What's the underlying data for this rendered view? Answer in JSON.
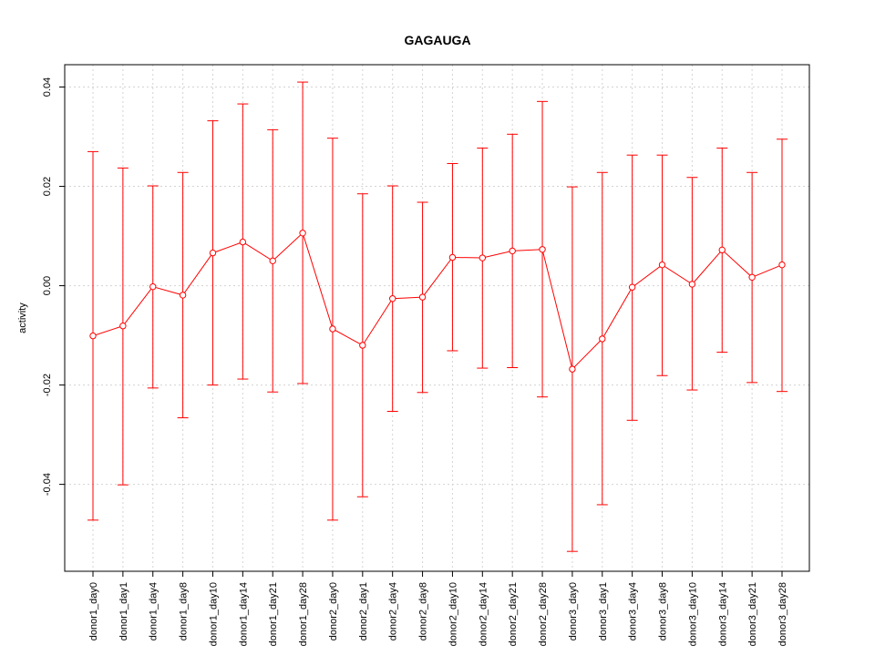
{
  "chart_data": {
    "type": "line",
    "title": "GAGAUGA",
    "xlabel": "",
    "ylabel": "activity",
    "ylim": [
      -0.0575,
      0.0445
    ],
    "yticks": [
      -0.04,
      -0.02,
      0.0,
      0.02,
      0.04
    ],
    "ytick_labels": [
      "-0.04",
      "-0.02",
      "0.00",
      "0.02",
      "0.04"
    ],
    "grid": true,
    "line_color": "#ff0000",
    "grid_color": "#d3d3d3",
    "categories": [
      "donor1_day0",
      "donor1_day1",
      "donor1_day4",
      "donor1_day8",
      "donor1_day10",
      "donor1_day14",
      "donor1_day21",
      "donor1_day28",
      "donor2_day0",
      "donor2_day1",
      "donor2_day4",
      "donor2_day8",
      "donor2_day10",
      "donor2_day14",
      "donor2_day21",
      "donor2_day28",
      "donor3_day0",
      "donor3_day1",
      "donor3_day4",
      "donor3_day8",
      "donor3_day10",
      "donor3_day14",
      "donor3_day21",
      "donor3_day28"
    ],
    "values": [
      -0.0101,
      -0.0081,
      -0.0002,
      -0.0019,
      0.0066,
      0.0088,
      0.005,
      0.0106,
      -0.0087,
      -0.012,
      -0.0026,
      -0.0023,
      0.0057,
      0.0056,
      0.007,
      0.0073,
      -0.0168,
      -0.0107,
      -0.0003,
      0.0042,
      0.0003,
      0.0072,
      0.0017,
      0.0042
    ],
    "upper": [
      0.027,
      0.0237,
      0.0201,
      0.0228,
      0.0332,
      0.0366,
      0.0314,
      0.041,
      0.0297,
      0.0185,
      0.0201,
      0.0168,
      0.0246,
      0.0277,
      0.0305,
      0.0371,
      0.0199,
      0.0228,
      0.0263,
      0.0263,
      0.0218,
      0.0277,
      0.0228,
      0.0295
    ],
    "lower": [
      -0.0472,
      -0.0401,
      -0.0206,
      -0.0266,
      -0.02,
      -0.0188,
      -0.0214,
      -0.0197,
      -0.0472,
      -0.0425,
      -0.0253,
      -0.0215,
      -0.0131,
      -0.0166,
      -0.0165,
      -0.0224,
      -0.0535,
      -0.0441,
      -0.0271,
      -0.0181,
      -0.021,
      -0.0134,
      -0.0195,
      -0.0213
    ]
  }
}
